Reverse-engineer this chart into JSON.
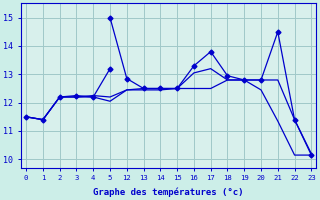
{
  "background_color": "#cceee8",
  "plot_background": "#d8f0ec",
  "line_color": "#0000cc",
  "grid_color": "#a0c8c8",
  "xlabel": "Graphe des températures (°c)",
  "ylabel_ticks": [
    10,
    11,
    12,
    13,
    14,
    15
  ],
  "xtick_labels": [
    "0",
    "1",
    "2",
    "3",
    "4",
    "5",
    "12",
    "13",
    "14",
    "15",
    "16",
    "17",
    "18",
    "19",
    "20",
    "21",
    "22",
    "23"
  ],
  "hours": [
    0,
    1,
    2,
    3,
    4,
    5,
    6,
    7,
    8,
    9,
    10,
    11,
    12,
    13,
    14,
    15,
    16,
    17
  ],
  "line1_x": [
    0,
    1,
    2,
    3,
    4,
    5
  ],
  "line1_y": [
    11.5,
    11.4,
    12.2,
    12.25,
    12.2,
    13.2
  ],
  "line2_x": [
    5,
    6,
    7,
    8,
    9,
    10,
    11,
    12,
    13,
    14,
    15,
    16,
    17
  ],
  "line2_y": [
    15.0,
    12.85,
    12.5,
    12.5,
    12.5,
    13.3,
    13.8,
    12.95,
    12.8,
    12.8,
    14.5,
    11.4,
    10.15
  ],
  "line3_x": [
    0,
    1,
    2,
    3,
    4,
    5,
    6,
    7,
    8,
    9,
    10,
    11,
    12,
    13,
    14,
    15,
    16,
    17
  ],
  "line3_y": [
    11.5,
    11.4,
    12.2,
    12.2,
    12.2,
    12.05,
    12.45,
    12.45,
    12.45,
    12.5,
    12.5,
    12.5,
    12.8,
    12.8,
    12.45,
    11.35,
    10.15,
    10.15
  ],
  "line4_x": [
    0,
    1,
    2,
    3,
    4,
    5,
    6,
    7,
    8,
    9,
    10,
    11,
    12,
    13,
    14,
    15,
    16,
    17
  ],
  "line4_y": [
    11.5,
    11.4,
    12.2,
    12.2,
    12.25,
    12.2,
    12.45,
    12.5,
    12.5,
    12.5,
    13.05,
    13.2,
    12.8,
    12.8,
    12.8,
    12.8,
    11.4,
    10.2
  ],
  "ylim": [
    9.7,
    15.5
  ],
  "xlim": [
    -0.3,
    17.3
  ]
}
